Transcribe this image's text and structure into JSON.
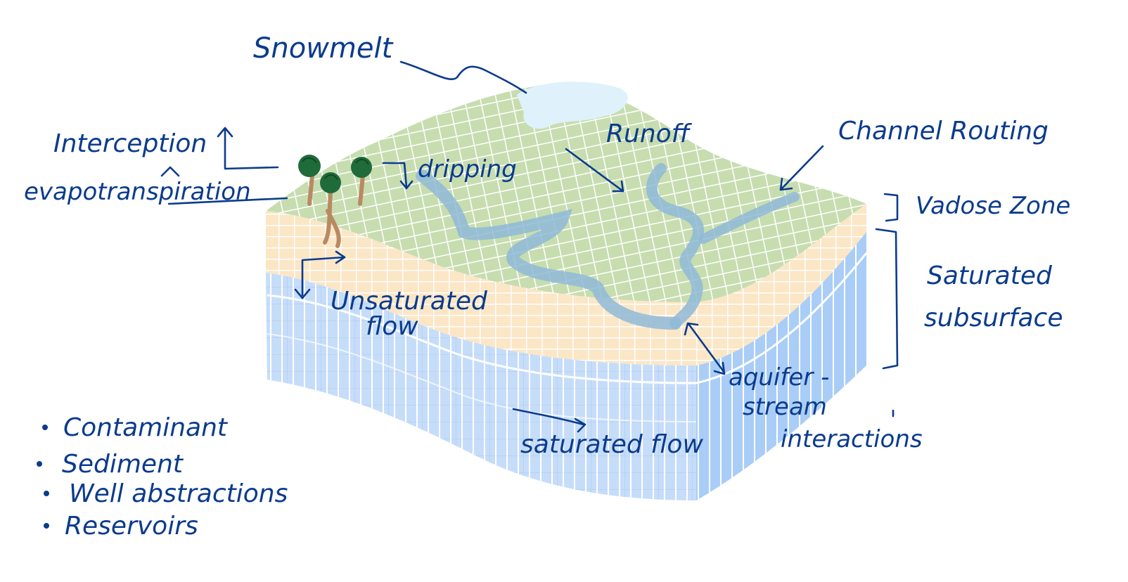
{
  "labels": {
    "snowmelt": "Snowmelt",
    "runoff": "Runoff",
    "channel_routing": "Channel Routing",
    "interception": "Interception",
    "evapotranspiration": "evapotranspiration",
    "dripping": "dripping",
    "vadose_zone": "Vadose Zone",
    "saturated_subsurface_line1": "Saturated",
    "saturated_subsurface_line2": "subsurface",
    "unsaturated_flow_line1": "Unsaturated",
    "unsaturated_flow_line2": "flow",
    "aquifer_line1": "aquifer -",
    "aquifer_line2": "stream",
    "aquifer_line3": "interactions",
    "saturated_flow": "saturated flow"
  },
  "notes": [
    "Contaminant",
    "Sediment",
    "Well abstractions",
    "Reservoirs"
  ],
  "colors": {
    "ink": "#0b3b8c",
    "surface_green": "#c7ddb0",
    "vadose_tan": "#fbe6c6",
    "saturated_blue": "#c6ddfa",
    "snow": "#dff1fb",
    "channel": "#9cc3dc",
    "tree_green": "#1f6b3a",
    "trunk": "#b98a62"
  }
}
